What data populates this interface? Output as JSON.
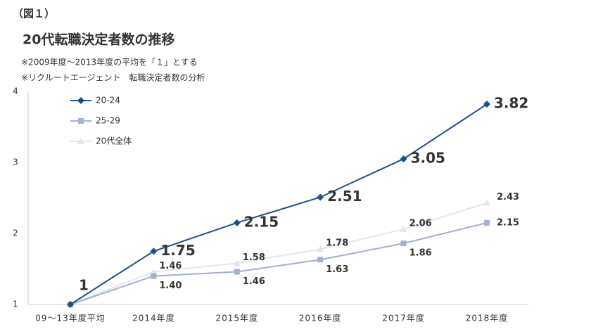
{
  "figure_label": "（図１）",
  "chart_data": {
    "type": "line",
    "title": "20代転職決定者数の推移",
    "notes": [
      "※2009年度～2013年度の平均を「１」とする",
      "※リクルートエージェント　転職決定者数の分析"
    ],
    "categories": [
      "09～13年度平均",
      "2014年度",
      "2015年度",
      "2016年度",
      "2017年度",
      "2018年度"
    ],
    "series": [
      {
        "name": "20-24",
        "color": "#1f4e8c",
        "marker": "diamond",
        "values": [
          1,
          1.75,
          2.15,
          2.51,
          3.05,
          3.82
        ]
      },
      {
        "name": "25-29",
        "color": "#a3afd3",
        "marker": "square",
        "values": [
          1,
          1.4,
          1.46,
          1.63,
          1.86,
          2.15
        ],
        "value_labels": [
          null,
          "1.40",
          "1.46",
          "1.63",
          "1.86",
          "2.15"
        ]
      },
      {
        "name": "20代全体",
        "color": "#e2e6f2",
        "marker": "triangle",
        "values": [
          1,
          1.46,
          1.58,
          1.78,
          2.06,
          2.43
        ],
        "value_labels": [
          null,
          "1.46",
          "1.58",
          "1.78",
          "2.06",
          "2.43"
        ]
      }
    ],
    "ylim": [
      1,
      4
    ],
    "yticks": [
      1,
      2,
      3,
      4
    ],
    "legend": "top-left"
  }
}
